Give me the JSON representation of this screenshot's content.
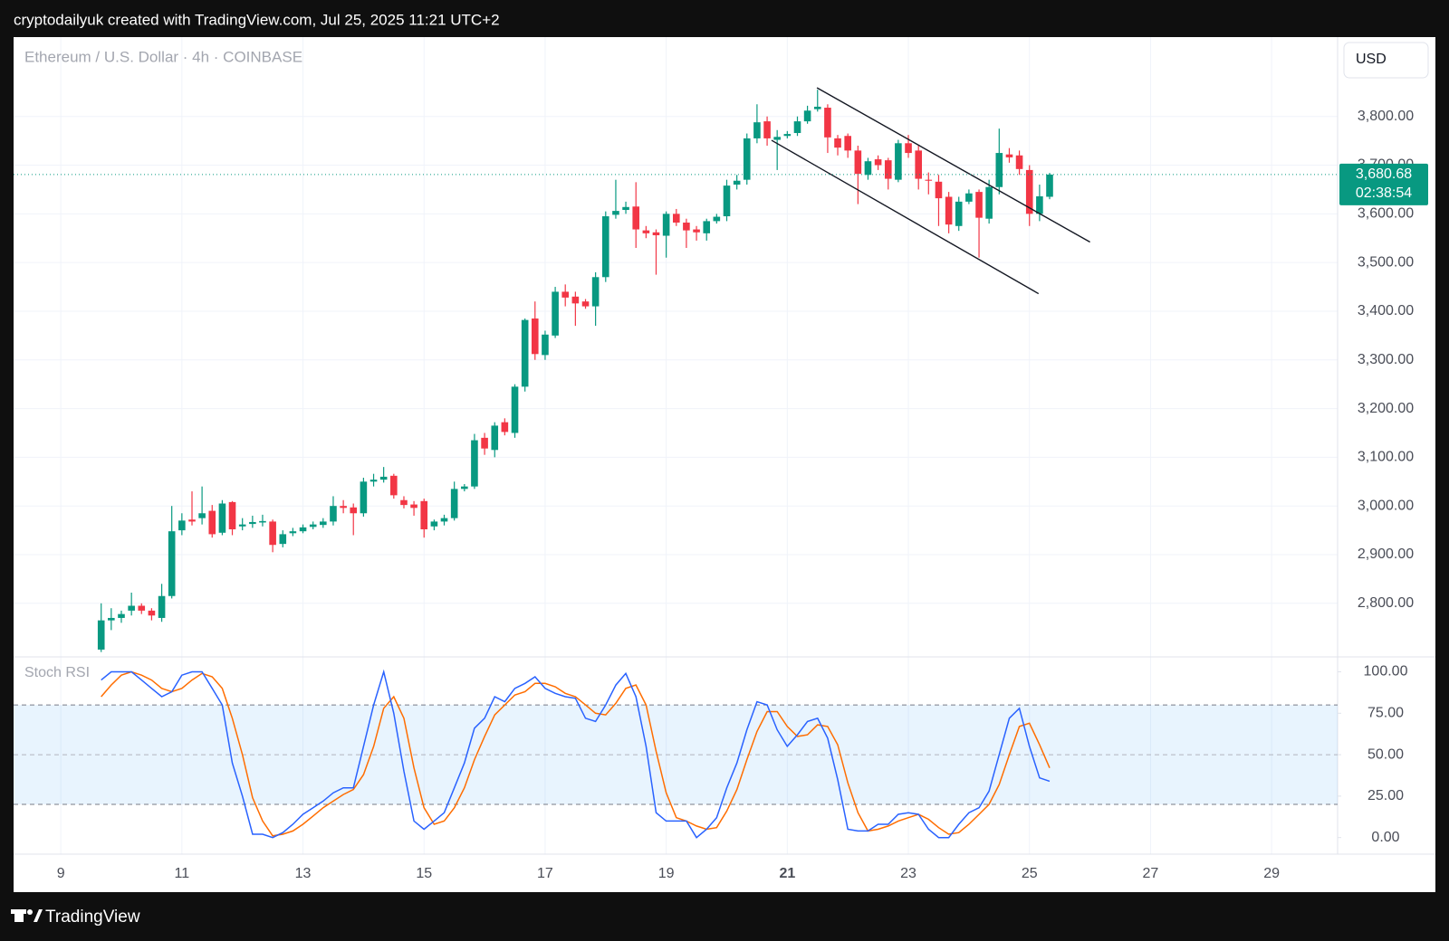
{
  "header": "cryptodailyuk created with TradingView.com, Jul 25, 2025 11:21 UTC+2",
  "footer": "TradingView",
  "chart_data": [
    {
      "type": "candlestick",
      "title": "Ethereum / U.S. Dollar · 4h · COINBASE",
      "currency": "USD",
      "up_color": "#089981",
      "down_color": "#f23645",
      "x": [
        9.667,
        9.833,
        10,
        10.167,
        10.333,
        10.5,
        10.667,
        10.833,
        11,
        11.167,
        11.333,
        11.5,
        11.667,
        11.833,
        12,
        12.167,
        12.333,
        12.5,
        12.667,
        12.833,
        13,
        13.167,
        13.333,
        13.5,
        13.667,
        13.833,
        14,
        14.167,
        14.333,
        14.5,
        14.667,
        14.833,
        15,
        15.167,
        15.333,
        15.5,
        15.667,
        15.833,
        16,
        16.167,
        16.333,
        16.5,
        16.667,
        16.833,
        17,
        17.167,
        17.333,
        17.5,
        17.667,
        17.833,
        18,
        18.167,
        18.333,
        18.5,
        18.667,
        18.833,
        19,
        19.167,
        19.333,
        19.5,
        19.667,
        19.833,
        20,
        20.167,
        20.333,
        20.5,
        20.667,
        20.833,
        21,
        21.167,
        21.333,
        21.5,
        21.667,
        21.833,
        22,
        22.167,
        22.333,
        22.5,
        22.667,
        22.833,
        23,
        23.167,
        23.333,
        23.5,
        23.667,
        23.833,
        24,
        24.167,
        24.333,
        24.5,
        24.667,
        24.833,
        25,
        25.167,
        25.333
      ],
      "open": [
        2705,
        2765,
        2770,
        2785,
        2795,
        2785,
        2770,
        2815,
        2950,
        2972,
        2975,
        2990,
        2945,
        3008,
        2958,
        2963,
        2966,
        2968,
        2922,
        2944,
        2948,
        2957,
        2961,
        2968,
        3000,
        2997,
        2985,
        3050,
        3054,
        3062,
        3012,
        3003,
        3010,
        2958,
        2968,
        2975,
        3035,
        3040,
        3140,
        3115,
        3172,
        3150,
        3245,
        3385,
        3310,
        3350,
        3440,
        3430,
        3420,
        3410,
        3470,
        3598,
        3608,
        3615,
        3566,
        3562,
        3555,
        3600,
        3582,
        3568,
        3560,
        3585,
        3595,
        3660,
        3670,
        3755,
        3790,
        3752,
        3760,
        3766,
        3790,
        3815,
        3818,
        3755,
        3760,
        3730,
        3680,
        3712,
        3710,
        3670,
        3745,
        3730,
        3670,
        3666,
        3635,
        3575,
        3625,
        3645,
        3590,
        3655,
        3722,
        3720,
        3690,
        3600,
        3635
      ],
      "high": [
        2800,
        2790,
        2785,
        2822,
        2800,
        2790,
        2840,
        3000,
        2985,
        3030,
        3040,
        3002,
        3012,
        3010,
        2975,
        2980,
        2982,
        2972,
        2950,
        2955,
        2962,
        2968,
        2975,
        3020,
        3012,
        3005,
        3058,
        3066,
        3080,
        3066,
        3020,
        3010,
        3015,
        2972,
        2982,
        3050,
        3045,
        3148,
        3150,
        3172,
        3180,
        3250,
        3385,
        3420,
        3360,
        3450,
        3455,
        3440,
        3425,
        3480,
        3605,
        3670,
        3625,
        3665,
        3575,
        3568,
        3605,
        3610,
        3590,
        3575,
        3590,
        3600,
        3670,
        3680,
        3765,
        3825,
        3800,
        3772,
        3770,
        3800,
        3822,
        3855,
        3825,
        3762,
        3765,
        3740,
        3715,
        3720,
        3715,
        3752,
        3762,
        3740,
        3685,
        3680,
        3645,
        3635,
        3650,
        3650,
        3670,
        3775,
        3735,
        3730,
        3700,
        3660,
        3684
      ],
      "low": [
        2700,
        2745,
        2760,
        2775,
        2778,
        2765,
        2762,
        2810,
        2940,
        2960,
        2962,
        2935,
        2940,
        2940,
        2950,
        2955,
        2958,
        2905,
        2915,
        2938,
        2944,
        2952,
        2955,
        2960,
        2985,
        2940,
        2978,
        3040,
        3048,
        3015,
        2995,
        2980,
        2935,
        2950,
        2960,
        2970,
        3030,
        3035,
        3105,
        3100,
        3145,
        3140,
        3235,
        3300,
        3300,
        3345,
        3410,
        3370,
        3405,
        3370,
        3460,
        3590,
        3600,
        3530,
        3550,
        3475,
        3510,
        3575,
        3530,
        3545,
        3545,
        3580,
        3585,
        3650,
        3660,
        3745,
        3740,
        3690,
        3755,
        3760,
        3785,
        3810,
        3725,
        3720,
        3715,
        3620,
        3670,
        3690,
        3650,
        3665,
        3715,
        3650,
        3640,
        3575,
        3560,
        3565,
        3620,
        3510,
        3580,
        3640,
        3705,
        3680,
        3575,
        3585,
        3630
      ],
      "close": [
        2765,
        2770,
        2778,
        2795,
        2785,
        2775,
        2815,
        2948,
        2970,
        2968,
        2985,
        2942,
        3005,
        2952,
        2962,
        2967,
        2969,
        2920,
        2942,
        2948,
        2956,
        2962,
        2968,
        3000,
        2996,
        2985,
        3050,
        3054,
        3060,
        3022,
        3002,
        2996,
        2952,
        2968,
        2975,
        3035,
        3040,
        3135,
        3118,
        3165,
        3152,
        3245,
        3382,
        3312,
        3352,
        3440,
        3428,
        3416,
        3410,
        3470,
        3595,
        3606,
        3614,
        3568,
        3560,
        3556,
        3600,
        3582,
        3566,
        3562,
        3585,
        3594,
        3658,
        3668,
        3755,
        3788,
        3755,
        3758,
        3764,
        3790,
        3812,
        3820,
        3757,
        3736,
        3730,
        3682,
        3708,
        3700,
        3672,
        3745,
        3725,
        3672,
        3668,
        3632,
        3578,
        3625,
        3642,
        3592,
        3655,
        3725,
        3716,
        3692,
        3600,
        3636,
        3680.68
      ],
      "last_price_label": "3,680.68",
      "countdown": "02:38:54",
      "xlim": [
        8.22,
        30.09
      ],
      "xticks": [
        9,
        11,
        13,
        15,
        17,
        19,
        21,
        23,
        25,
        27,
        29
      ],
      "highlight_xtick": 21,
      "ylim": [
        2690,
        3963
      ],
      "yticks": [
        {
          "value": 2800,
          "label": "2,800.00"
        },
        {
          "value": 2900,
          "label": "2,900.00"
        },
        {
          "value": 3000,
          "label": "3,000.00"
        },
        {
          "value": 3100,
          "label": "3,100.00"
        },
        {
          "value": 3200,
          "label": "3,200.00"
        },
        {
          "value": 3300,
          "label": "3,300.00"
        },
        {
          "value": 3400,
          "label": "3,400.00"
        },
        {
          "value": 3500,
          "label": "3,500.00"
        },
        {
          "value": 3600,
          "label": "3,600.00"
        },
        {
          "value": 3700,
          "label": "3,700.00"
        },
        {
          "value": 3800,
          "label": "3,800.00"
        }
      ],
      "trendlines": [
        {
          "x": [
            21.49,
            26.0
          ],
          "y": [
            3859,
            3542
          ]
        },
        {
          "x": [
            20.74,
            25.15
          ],
          "y": [
            3751,
            3436
          ]
        }
      ]
    },
    {
      "type": "line",
      "title": "Stoch RSI",
      "ylim": [
        -10,
        109
      ],
      "bands": [
        20,
        80
      ],
      "yticks": [
        {
          "value": 0,
          "label": "0.00"
        },
        {
          "value": 25,
          "label": "25.00"
        },
        {
          "value": 50,
          "label": "50.00"
        },
        {
          "value": 75,
          "label": "75.00"
        },
        {
          "value": 100,
          "label": "100.00"
        }
      ],
      "series": [
        {
          "color": "#2962ff",
          "values": [
            95,
            100,
            100,
            100,
            95,
            90,
            85,
            88,
            98,
            100,
            100,
            90,
            80,
            45,
            25,
            2,
            2,
            0,
            3,
            8,
            14,
            18,
            22,
            27,
            30,
            30,
            55,
            80,
            100,
            75,
            40,
            10,
            5,
            10,
            15,
            30,
            45,
            66,
            72,
            85,
            82,
            90,
            93,
            97,
            90,
            87,
            85,
            84,
            72,
            70,
            80,
            92,
            99,
            85,
            55,
            15,
            10,
            10,
            10,
            0,
            5,
            12,
            30,
            45,
            65,
            82,
            80,
            65,
            55,
            62,
            70,
            72,
            60,
            35,
            5,
            4,
            4,
            8,
            8,
            14,
            15,
            14,
            5,
            0,
            0,
            8,
            15,
            18,
            28,
            50,
            72,
            78,
            55,
            36,
            34
          ]
        },
        {
          "color": "#ff6d00",
          "values": [
            85,
            92,
            98,
            100,
            98,
            95,
            90,
            88,
            90,
            95,
            99,
            97,
            90,
            72,
            50,
            24,
            10,
            1,
            2,
            4,
            8,
            13,
            18,
            22,
            26,
            29,
            38,
            55,
            78,
            85,
            72,
            42,
            18,
            8,
            10,
            18,
            30,
            47,
            61,
            74,
            80,
            86,
            88,
            93,
            93,
            91,
            87,
            85,
            80,
            75,
            74,
            81,
            90,
            92,
            80,
            52,
            27,
            12,
            10,
            7,
            5,
            6,
            16,
            29,
            47,
            64,
            76,
            76,
            67,
            61,
            62,
            68,
            67,
            56,
            33,
            15,
            4,
            5,
            7,
            10,
            12,
            14,
            11,
            6,
            2,
            3,
            8,
            14,
            20,
            32,
            50,
            67,
            69,
            56,
            42
          ]
        }
      ]
    }
  ]
}
